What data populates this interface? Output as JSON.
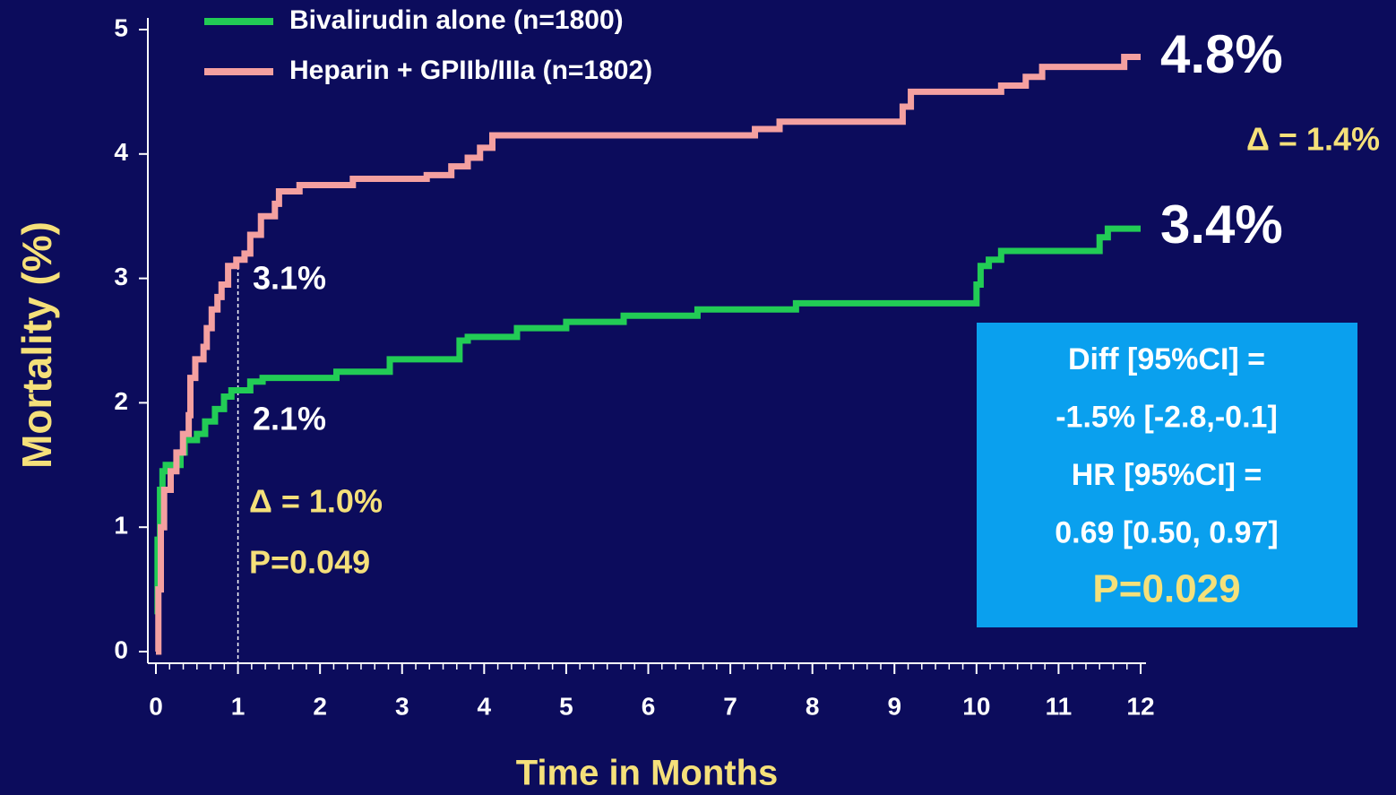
{
  "chart_data": {
    "type": "line",
    "step": true,
    "x_label": "Time in Months",
    "y_label": "Mortality (%)",
    "xlim": [
      0,
      12
    ],
    "ylim": [
      0,
      5
    ],
    "xticks": [
      0,
      1,
      2,
      3,
      4,
      5,
      6,
      7,
      8,
      9,
      10,
      11,
      12
    ],
    "yticks": [
      0,
      1,
      2,
      3,
      4,
      5
    ],
    "x_minor_per_major": 6,
    "reference_x": 1,
    "series": [
      {
        "name": "Bivalirudin alone (n=1800)",
        "color": "#22cc55",
        "x": [
          0,
          0.02,
          0.02,
          0.05,
          0.05,
          0.08,
          0.08,
          0.12,
          0.12,
          0.3,
          0.3,
          0.35,
          0.35,
          0.5,
          0.5,
          0.6,
          0.6,
          0.72,
          0.72,
          0.83,
          0.83,
          0.92,
          0.92,
          1.15,
          1.15,
          1.3,
          1.3,
          2.2,
          2.2,
          2.85,
          2.85,
          3.7,
          3.7,
          3.8,
          3.8,
          4.4,
          4.4,
          5.0,
          5.0,
          5.7,
          5.7,
          6.6,
          6.6,
          7.8,
          7.8,
          10.0,
          10.0,
          10.05,
          10.05,
          10.15,
          10.15,
          10.3,
          10.3,
          11.5,
          11.5,
          11.6,
          11.6,
          12
        ],
        "values": [
          0.3,
          0.3,
          0.9,
          0.9,
          1.3,
          1.3,
          1.45,
          1.45,
          1.5,
          1.5,
          1.6,
          1.6,
          1.7,
          1.7,
          1.75,
          1.75,
          1.85,
          1.85,
          1.95,
          1.95,
          2.05,
          2.05,
          2.1,
          2.1,
          2.17,
          2.17,
          2.2,
          2.2,
          2.25,
          2.25,
          2.35,
          2.35,
          2.5,
          2.5,
          2.53,
          2.53,
          2.6,
          2.6,
          2.65,
          2.65,
          2.7,
          2.7,
          2.75,
          2.75,
          2.8,
          2.8,
          2.95,
          2.95,
          3.1,
          3.1,
          3.15,
          3.15,
          3.22,
          3.22,
          3.33,
          3.33,
          3.4,
          3.4
        ]
      },
      {
        "name": "Heparin + GPIIb/IIIa (n=1802)",
        "color": "#f4a0a0",
        "x": [
          0,
          0.03,
          0.03,
          0.06,
          0.06,
          0.1,
          0.1,
          0.18,
          0.18,
          0.25,
          0.25,
          0.33,
          0.33,
          0.4,
          0.4,
          0.42,
          0.42,
          0.48,
          0.48,
          0.58,
          0.58,
          0.62,
          0.62,
          0.68,
          0.68,
          0.75,
          0.75,
          0.8,
          0.8,
          0.88,
          0.88,
          0.98,
          0.98,
          1.08,
          1.08,
          1.15,
          1.15,
          1.28,
          1.28,
          1.45,
          1.45,
          1.5,
          1.5,
          1.75,
          1.75,
          2.4,
          2.4,
          3.3,
          3.3,
          3.6,
          3.6,
          3.8,
          3.8,
          3.95,
          3.95,
          4.1,
          4.1,
          7.3,
          7.3,
          7.6,
          7.6,
          9.1,
          9.1,
          9.2,
          9.2,
          10.3,
          10.3,
          10.6,
          10.6,
          10.8,
          10.8,
          11.8,
          11.8,
          12
        ],
        "values": [
          0,
          0,
          0.5,
          0.5,
          1.0,
          1.0,
          1.3,
          1.3,
          1.45,
          1.45,
          1.6,
          1.6,
          1.75,
          1.75,
          1.9,
          1.9,
          2.2,
          2.2,
          2.35,
          2.35,
          2.45,
          2.45,
          2.6,
          2.6,
          2.75,
          2.75,
          2.85,
          2.85,
          2.95,
          2.95,
          3.1,
          3.1,
          3.15,
          3.15,
          3.2,
          3.2,
          3.35,
          3.35,
          3.5,
          3.5,
          3.6,
          3.6,
          3.7,
          3.7,
          3.75,
          3.75,
          3.8,
          3.8,
          3.83,
          3.83,
          3.9,
          3.9,
          3.97,
          3.97,
          4.05,
          4.05,
          4.15,
          4.15,
          4.2,
          4.2,
          4.26,
          4.26,
          4.38,
          4.38,
          4.5,
          4.5,
          4.55,
          4.55,
          4.62,
          4.62,
          4.7,
          4.7,
          4.78,
          4.78
        ]
      }
    ],
    "annotations": [
      "4.8%",
      "Δ = 1.4%",
      "3.4%",
      "3.1%",
      "2.1%",
      "Δ = 1.0%",
      "P=0.049"
    ],
    "stats_box": [
      "Diff [95%CI] =",
      "-1.5% [-2.8,-0.1]",
      "HR [95%CI] =",
      "0.69 [0.50, 0.97]",
      "P=0.029"
    ]
  }
}
